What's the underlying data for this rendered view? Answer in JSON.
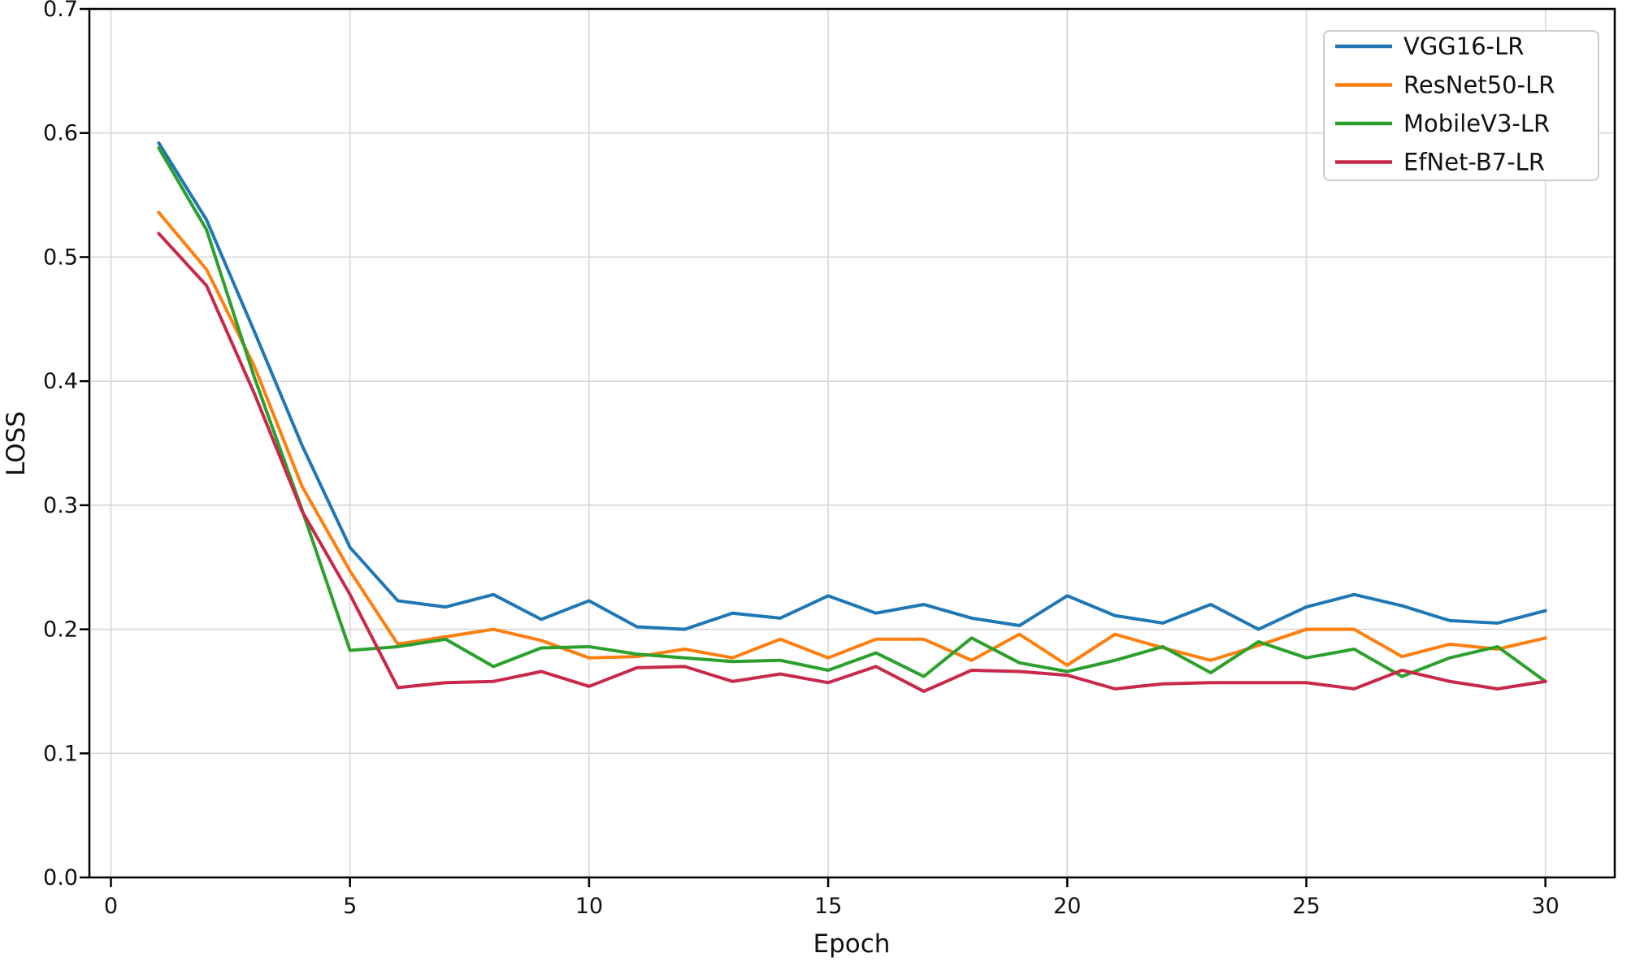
{
  "chart_data": {
    "type": "line",
    "title": "",
    "xlabel": "Epoch",
    "ylabel": "LOSS",
    "epochs": [
      1,
      2,
      3,
      4,
      5,
      6,
      7,
      8,
      9,
      10,
      11,
      12,
      13,
      14,
      15,
      16,
      17,
      18,
      19,
      20,
      21,
      22,
      23,
      24,
      25,
      26,
      27,
      28,
      29,
      30
    ],
    "series": [
      {
        "name": "VGG16-LR",
        "color": "#1f77b4",
        "values": [
          0.592,
          0.53,
          0.44,
          0.348,
          0.266,
          0.223,
          0.218,
          0.228,
          0.208,
          0.223,
          0.202,
          0.2,
          0.213,
          0.209,
          0.227,
          0.213,
          0.22,
          0.209,
          0.203,
          0.227,
          0.211,
          0.205,
          0.22,
          0.2,
          0.218,
          0.228,
          0.219,
          0.207,
          0.205,
          0.215
        ]
      },
      {
        "name": "ResNet50-LR",
        "color": "#ff7f0e",
        "values": [
          0.536,
          0.49,
          0.412,
          0.315,
          0.247,
          0.188,
          0.194,
          0.2,
          0.191,
          0.177,
          0.178,
          0.184,
          0.177,
          0.192,
          0.177,
          0.192,
          0.192,
          0.175,
          0.196,
          0.171,
          0.196,
          0.185,
          0.175,
          0.187,
          0.2,
          0.2,
          0.178,
          0.188,
          0.184,
          0.193
        ]
      },
      {
        "name": "MobileV3-LR",
        "color": "#2ca02c",
        "values": [
          0.588,
          0.522,
          0.403,
          0.296,
          0.183,
          0.186,
          0.192,
          0.17,
          0.185,
          0.186,
          0.18,
          0.177,
          0.174,
          0.175,
          0.167,
          0.181,
          0.162,
          0.193,
          0.173,
          0.166,
          0.175,
          0.186,
          0.165,
          0.19,
          0.177,
          0.184,
          0.162,
          0.177,
          0.186,
          0.158
        ]
      },
      {
        "name": "EfNet-B7-LR",
        "color": "#c8294a",
        "values": [
          0.519,
          0.477,
          0.39,
          0.295,
          0.228,
          0.153,
          0.157,
          0.158,
          0.166,
          0.154,
          0.169,
          0.17,
          0.158,
          0.164,
          0.157,
          0.17,
          0.15,
          0.167,
          0.166,
          0.163,
          0.152,
          0.156,
          0.157,
          0.157,
          0.157,
          0.152,
          0.167,
          0.158,
          0.152,
          0.158
        ]
      }
    ],
    "xlim": [
      -0.45,
      31.45
    ],
    "ylim": [
      0.0,
      0.7
    ],
    "xticks": [
      0,
      5,
      10,
      15,
      20,
      25,
      30
    ],
    "yticks": [
      0.0,
      0.1,
      0.2,
      0.3,
      0.4,
      0.5,
      0.6,
      0.7
    ],
    "grid": true,
    "legend_position": "upper right"
  },
  "style": {
    "background": "#ffffff",
    "grid_color": "#d7d7d7",
    "axis_color": "#000000",
    "tick_text_color": "#111111",
    "legend_border_color": "#cccccc",
    "legend_background": "#ffffff"
  }
}
